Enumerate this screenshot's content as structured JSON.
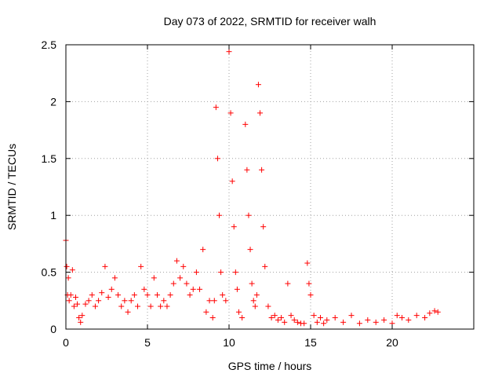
{
  "chart_data": {
    "type": "scatter",
    "title": "Day 073 of 2022, SRMTID for receiver walh",
    "xlabel": "GPS time / hours",
    "ylabel": "SRMTID / TECUs",
    "xlim": [
      0,
      25
    ],
    "ylim": [
      0,
      2.5
    ],
    "xticks": [
      0,
      5,
      10,
      15,
      20
    ],
    "yticks": [
      0,
      0.5,
      1,
      1.5,
      2,
      2.5
    ],
    "xtick_labels": [
      "0",
      "5",
      "10",
      "15",
      "20"
    ],
    "ytick_labels": [
      "0",
      "0.5",
      "1",
      "1.5",
      "2",
      "2.5"
    ],
    "grid": true,
    "marker": "+",
    "color": "#ff0000",
    "series": [
      {
        "name": "SRMTID",
        "x": [
          0.0,
          0.05,
          0.1,
          0.15,
          0.2,
          0.3,
          0.4,
          0.5,
          0.6,
          0.7,
          0.8,
          0.9,
          1.0,
          1.2,
          1.4,
          1.6,
          1.8,
          2.0,
          2.2,
          2.4,
          2.6,
          2.8,
          3.0,
          3.2,
          3.4,
          3.6,
          3.8,
          4.0,
          4.2,
          4.4,
          4.6,
          4.8,
          5.0,
          5.2,
          5.4,
          5.6,
          5.8,
          6.0,
          6.2,
          6.4,
          6.6,
          6.8,
          7.0,
          7.2,
          7.4,
          7.6,
          7.8,
          8.0,
          8.2,
          8.4,
          8.6,
          8.8,
          9.0,
          9.1,
          9.2,
          9.3,
          9.4,
          9.5,
          9.6,
          9.8,
          10.0,
          10.1,
          10.2,
          10.3,
          10.4,
          10.5,
          10.6,
          10.8,
          11.0,
          11.1,
          11.2,
          11.3,
          11.4,
          11.5,
          11.6,
          11.7,
          11.8,
          11.9,
          12.0,
          12.1,
          12.2,
          12.4,
          12.6,
          12.8,
          13.0,
          13.2,
          13.4,
          13.6,
          13.8,
          14.0,
          14.2,
          14.4,
          14.6,
          14.8,
          14.9,
          15.0,
          15.2,
          15.4,
          15.6,
          15.8,
          16.0,
          16.5,
          17.0,
          17.5,
          18.0,
          18.5,
          19.0,
          19.5,
          20.0,
          20.3,
          20.6,
          21.0,
          21.5,
          22.0,
          22.3,
          22.6,
          22.8
        ],
        "y": [
          0.78,
          0.55,
          0.3,
          0.45,
          0.25,
          0.3,
          0.52,
          0.2,
          0.28,
          0.22,
          0.1,
          0.06,
          0.12,
          0.22,
          0.25,
          0.3,
          0.2,
          0.25,
          0.32,
          0.55,
          0.28,
          0.35,
          0.45,
          0.3,
          0.2,
          0.25,
          0.15,
          0.25,
          0.3,
          0.2,
          0.55,
          0.35,
          0.3,
          0.2,
          0.45,
          0.3,
          0.2,
          0.25,
          0.2,
          0.3,
          0.4,
          0.6,
          0.45,
          0.55,
          0.4,
          0.3,
          0.35,
          0.5,
          0.35,
          0.7,
          0.15,
          0.25,
          0.1,
          0.25,
          1.95,
          1.5,
          1.0,
          0.5,
          0.3,
          0.25,
          2.44,
          1.9,
          1.3,
          0.9,
          0.5,
          0.35,
          0.15,
          0.1,
          1.8,
          1.4,
          1.0,
          0.7,
          0.4,
          0.25,
          0.2,
          0.3,
          2.15,
          1.9,
          1.4,
          0.9,
          0.55,
          0.2,
          0.1,
          0.12,
          0.08,
          0.1,
          0.06,
          0.4,
          0.12,
          0.08,
          0.06,
          0.05,
          0.05,
          0.58,
          0.4,
          0.3,
          0.12,
          0.06,
          0.1,
          0.05,
          0.08,
          0.1,
          0.06,
          0.12,
          0.05,
          0.08,
          0.06,
          0.08,
          0.05,
          0.12,
          0.1,
          0.08,
          0.12,
          0.1,
          0.14,
          0.16,
          0.15
        ]
      }
    ]
  }
}
